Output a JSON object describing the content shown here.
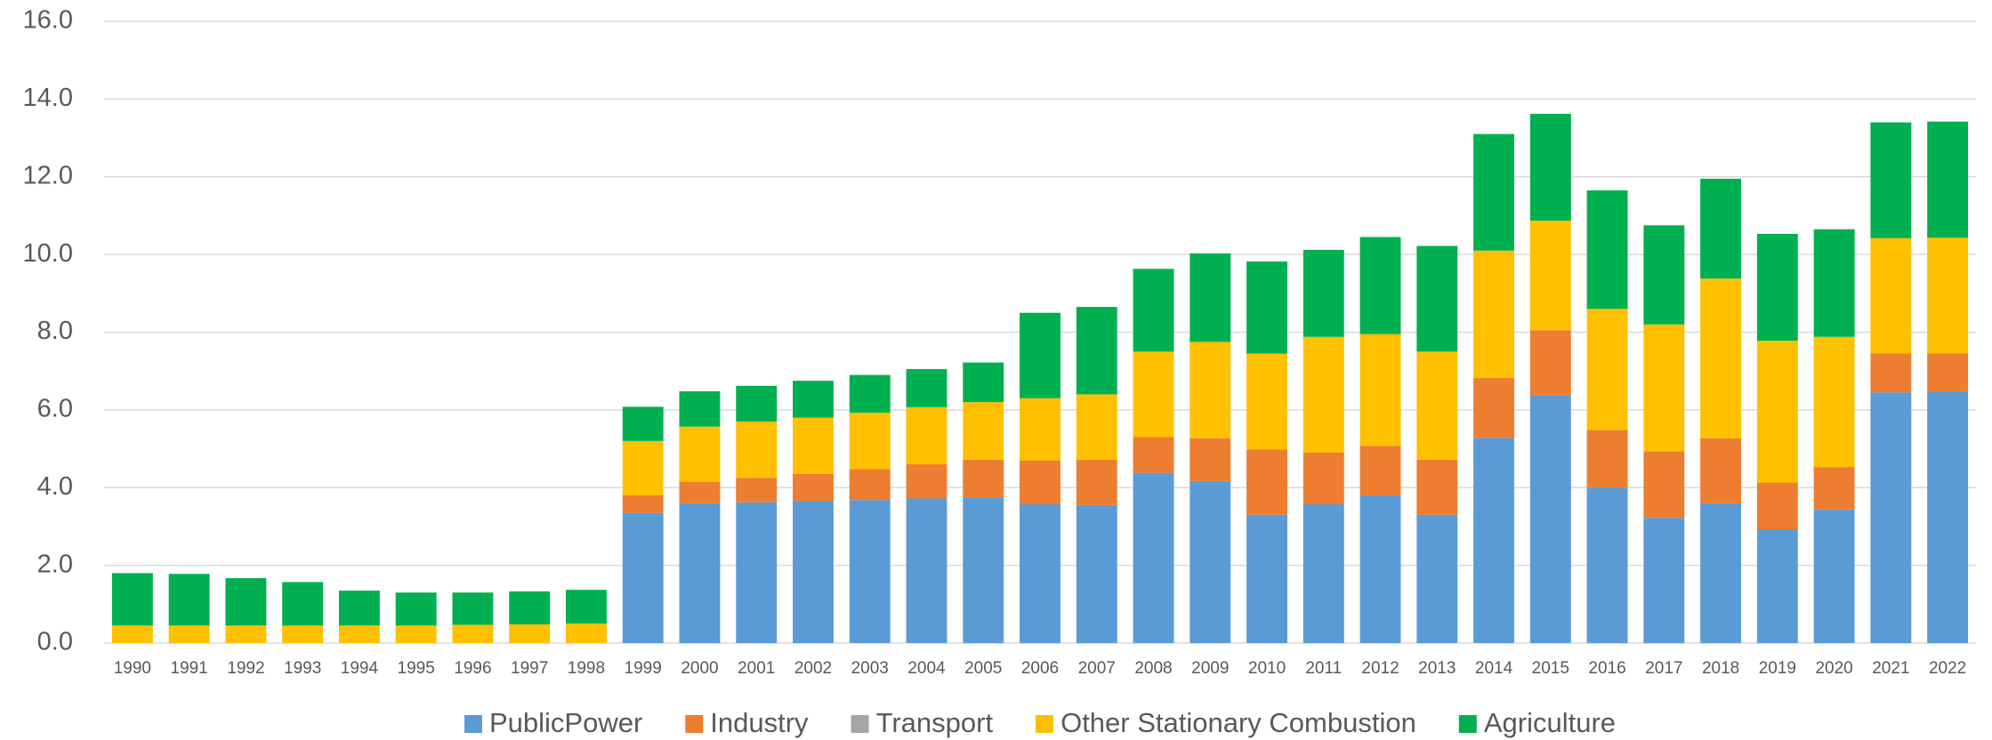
{
  "chart_data": {
    "type": "stacked_bar",
    "categories": [
      "1990",
      "1991",
      "1992",
      "1993",
      "1994",
      "1995",
      "1996",
      "1997",
      "1998",
      "1999",
      "2000",
      "2001",
      "2002",
      "2003",
      "2004",
      "2005",
      "2006",
      "2007",
      "2008",
      "2009",
      "2010",
      "2011",
      "2012",
      "2013",
      "2014",
      "2015",
      "2016",
      "2017",
      "2018",
      "2019",
      "2020",
      "2021",
      "2022"
    ],
    "series": [
      {
        "name": "PublicPower",
        "color": "#5b9bd5",
        "values": [
          0,
          0,
          0,
          0,
          0,
          0,
          0,
          0,
          0,
          3.35,
          3.6,
          3.62,
          3.65,
          3.68,
          3.72,
          3.75,
          3.57,
          3.55,
          4.38,
          4.17,
          3.3,
          3.57,
          3.8,
          3.3,
          5.28,
          6.38,
          4.0,
          3.22,
          3.6,
          2.93,
          3.43,
          6.45,
          6.47
        ]
      },
      {
        "name": "Industry",
        "color": "#ed7d31",
        "values": [
          0,
          0,
          0,
          0,
          0,
          0,
          0,
          0,
          0,
          0.45,
          0.55,
          0.63,
          0.7,
          0.8,
          0.88,
          0.97,
          1.13,
          1.17,
          0.92,
          1.1,
          1.68,
          1.33,
          1.27,
          1.42,
          1.54,
          1.67,
          1.48,
          1.71,
          1.67,
          1.2,
          1.1,
          1.0,
          0.98
        ]
      },
      {
        "name": "Transport",
        "color": "#a5a5a5",
        "values": [
          0,
          0,
          0,
          0,
          0,
          0,
          0,
          0,
          0,
          0,
          0,
          0,
          0,
          0,
          0,
          0,
          0,
          0,
          0,
          0,
          0,
          0,
          0,
          0,
          0,
          0,
          0,
          0,
          0,
          0,
          0,
          0,
          0
        ]
      },
      {
        "name": "Other Stationary Combustion",
        "color": "#ffc000",
        "values": [
          0.45,
          0.45,
          0.45,
          0.45,
          0.45,
          0.45,
          0.47,
          0.48,
          0.5,
          1.4,
          1.42,
          1.45,
          1.45,
          1.45,
          1.47,
          1.48,
          1.6,
          1.68,
          2.2,
          2.48,
          2.47,
          2.98,
          2.88,
          2.78,
          3.28,
          2.82,
          3.12,
          3.27,
          4.11,
          3.65,
          3.35,
          2.97,
          2.98
        ]
      },
      {
        "name": "Agriculture",
        "color": "#00b050",
        "values": [
          1.35,
          1.33,
          1.22,
          1.12,
          0.9,
          0.85,
          0.83,
          0.85,
          0.87,
          0.88,
          0.91,
          0.92,
          0.95,
          0.97,
          0.98,
          1.02,
          2.2,
          2.25,
          2.13,
          2.28,
          2.37,
          2.24,
          2.5,
          2.72,
          3.0,
          2.75,
          3.05,
          2.55,
          2.57,
          2.75,
          2.77,
          2.98,
          2.99
        ]
      }
    ],
    "ylim": [
      0,
      16
    ],
    "yticks": [
      {
        "value": 0,
        "label": "0.0"
      },
      {
        "value": 2,
        "label": "2.0"
      },
      {
        "value": 4,
        "label": "4.0"
      },
      {
        "value": 6,
        "label": "6.0"
      },
      {
        "value": 8,
        "label": "8.0"
      },
      {
        "value": 10,
        "label": "10.0"
      },
      {
        "value": 12,
        "label": "12.0"
      },
      {
        "value": 14,
        "label": "14.0"
      },
      {
        "value": 16,
        "label": "16.0"
      }
    ],
    "grid": true,
    "legend": "bottom"
  }
}
